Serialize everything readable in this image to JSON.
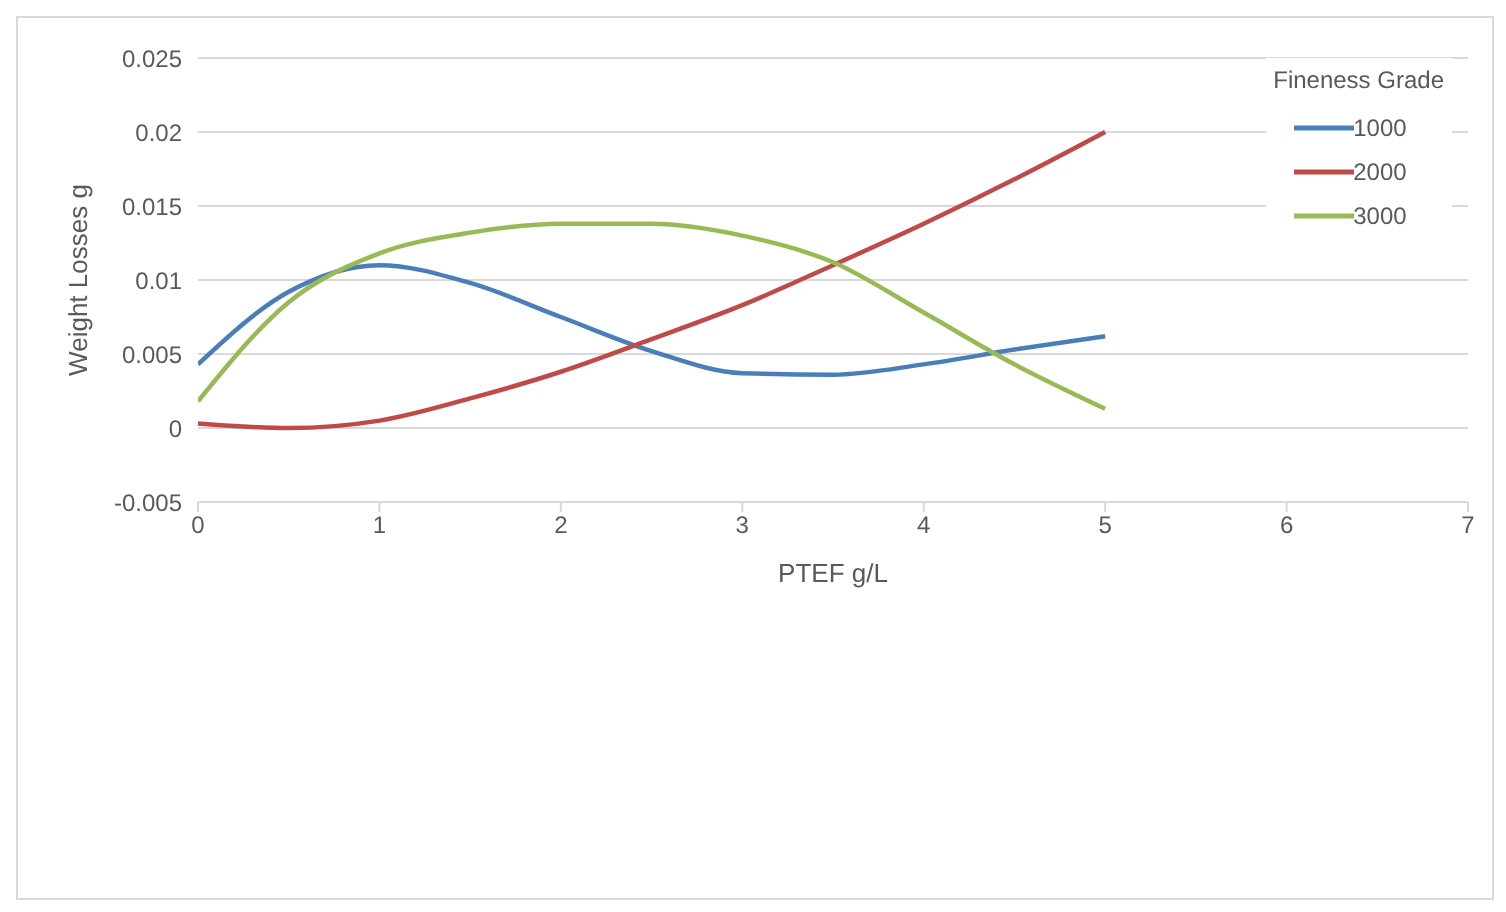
{
  "chart_data": {
    "type": "line",
    "xlabel": "PTEF g/L",
    "ylabel": "Weight Losses  g",
    "legend_title": "Fineness Grade",
    "x": [
      0,
      0.5,
      1,
      1.5,
      2,
      2.5,
      3,
      3.5,
      4,
      4.5,
      5
    ],
    "series": [
      {
        "name": "1000",
        "color": "#4a7ebb",
        "values": [
          0.0043,
          0.0092,
          0.011,
          0.0098,
          0.0075,
          0.0052,
          0.0037,
          0.0036,
          0.0043,
          0.0053,
          0.0062
        ]
      },
      {
        "name": "2000",
        "color": "#be4b48",
        "values": [
          0.0003,
          0.0,
          0.0005,
          0.002,
          0.0038,
          0.006,
          0.0083,
          0.011,
          0.0138,
          0.0168,
          0.02
        ]
      },
      {
        "name": "3000",
        "color": "#98b954",
        "values": [
          0.0018,
          0.0085,
          0.0118,
          0.0132,
          0.0138,
          0.0138,
          0.013,
          0.0112,
          0.0078,
          0.0043,
          0.0013
        ]
      }
    ],
    "xlim": [
      0,
      7
    ],
    "xticks": [
      0,
      1,
      2,
      3,
      4,
      5,
      6,
      7
    ],
    "ylim": [
      -0.005,
      0.025
    ],
    "yticks": [
      -0.005,
      0,
      0.005,
      0.01,
      0.015,
      0.02,
      0.025
    ],
    "grid": "y",
    "legend": "top right",
    "marker": "none",
    "line_style": "solid"
  }
}
